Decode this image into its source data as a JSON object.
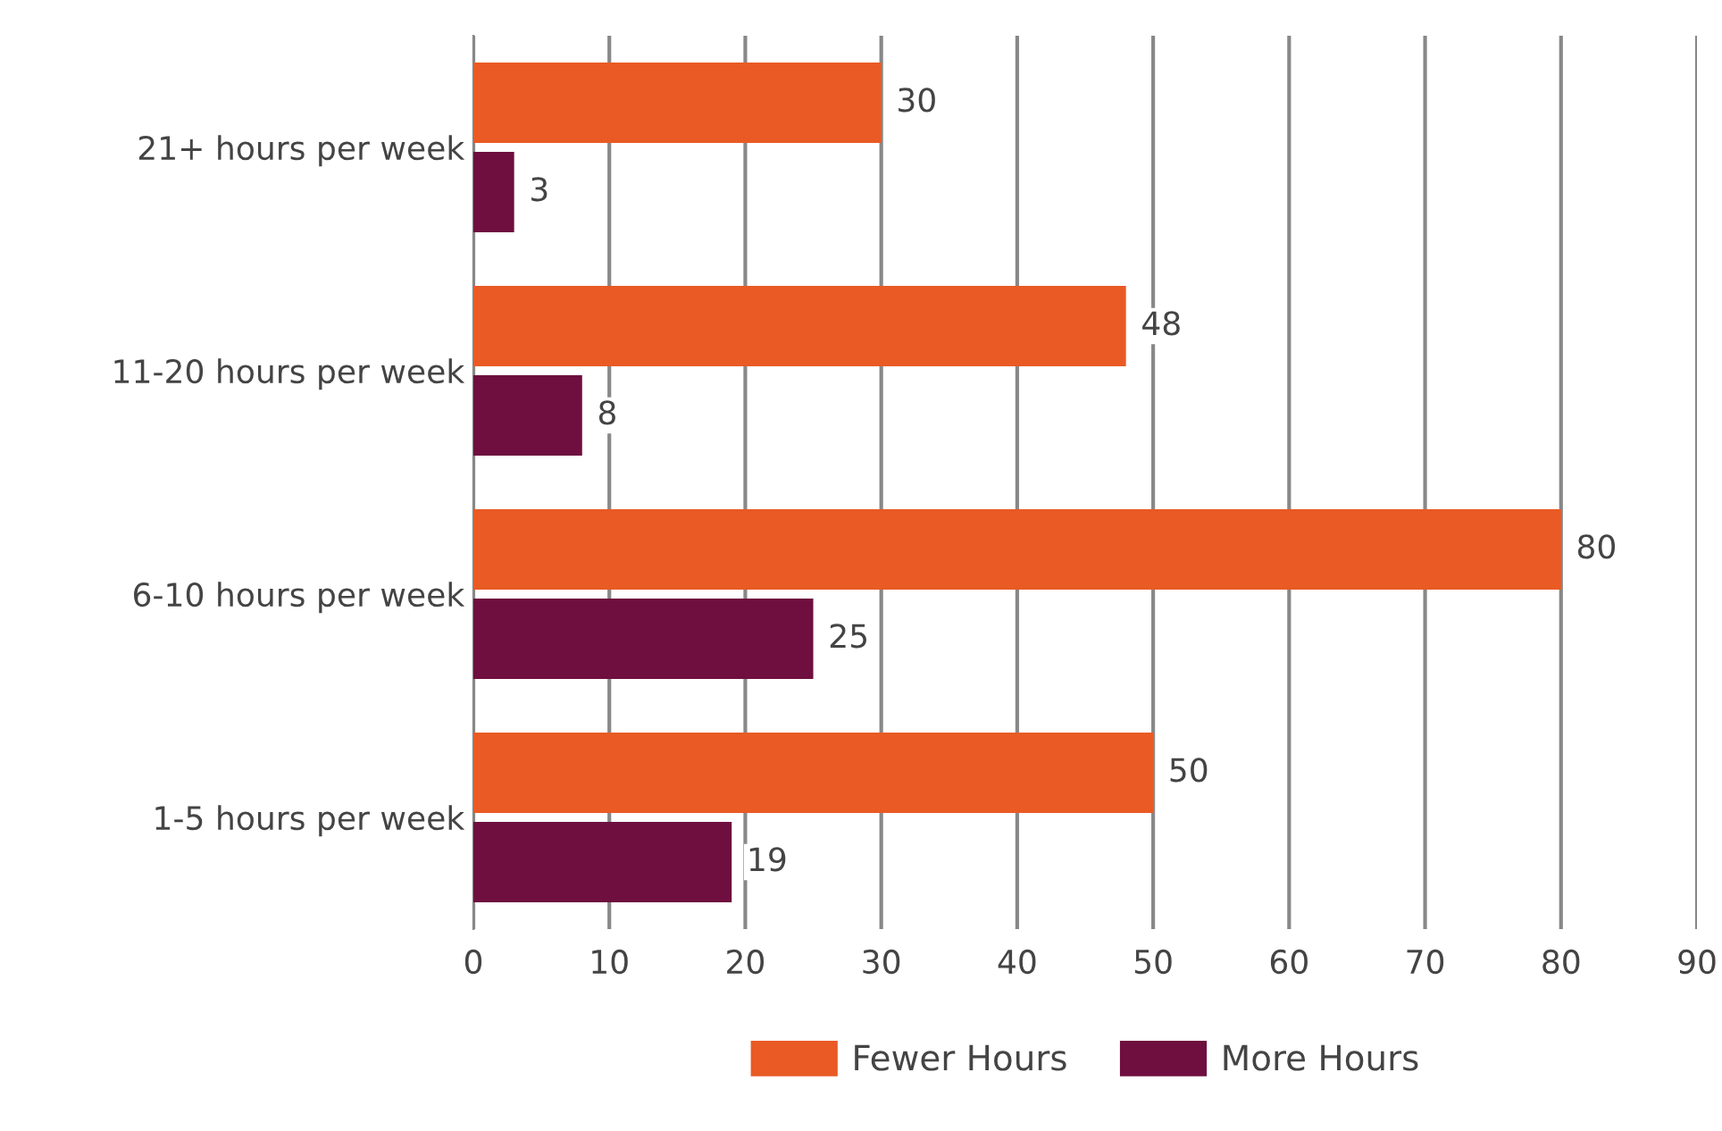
{
  "chart_data": {
    "type": "bar",
    "orientation": "horizontal",
    "categories": [
      "21+ hours per week",
      "11-20 hours per week",
      "6-10 hours per week",
      "1-5 hours per week"
    ],
    "series": [
      {
        "name": "Fewer Hours",
        "color": "#e95a24",
        "values": [
          30,
          48,
          80,
          50
        ]
      },
      {
        "name": "More Hours",
        "color": "#6e0f3f",
        "values": [
          3,
          8,
          25,
          19
        ]
      }
    ],
    "xlim": [
      0,
      90
    ],
    "xticks": [
      0,
      10,
      20,
      30,
      40,
      50,
      60,
      70,
      80,
      90
    ],
    "grid": "x",
    "legend": "bottom",
    "data_labels": true
  }
}
